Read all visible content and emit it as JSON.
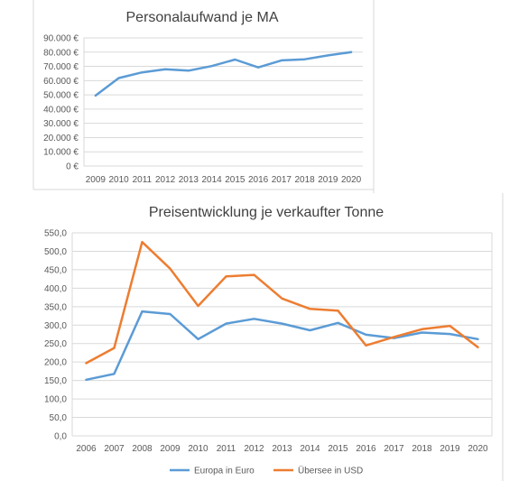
{
  "chart_data": [
    {
      "type": "line",
      "title": "Personalaufwand je MA",
      "x": [
        "2009",
        "2010",
        "2011",
        "2012",
        "2013",
        "2014",
        "2015",
        "2016",
        "2017",
        "2018",
        "2019",
        "2020"
      ],
      "yticks": [
        "0 €",
        "10.000 €",
        "20.000 €",
        "30.000 €",
        "40.000 €",
        "50.000 €",
        "60.000 €",
        "70.000 €",
        "80.000 €",
        "90.000 €"
      ],
      "ylim": [
        0,
        90000
      ],
      "grid": true,
      "series": [
        {
          "values": [
            49500,
            61800,
            65800,
            68000,
            67000,
            70200,
            74800,
            69300,
            74200,
            75000,
            77700,
            80000
          ],
          "color": "#5b9bd5"
        }
      ]
    },
    {
      "type": "line",
      "title": "Preisentwicklung je verkaufter Tonne",
      "x": [
        "2006",
        "2007",
        "2008",
        "2009",
        "2010",
        "2011",
        "2012",
        "2013",
        "2014",
        "2015",
        "2016",
        "2017",
        "2018",
        "2019",
        "2020"
      ],
      "yticks": [
        "0,0",
        "50,0",
        "100,0",
        "150,0",
        "200,0",
        "250,0",
        "300,0",
        "350,0",
        "400,0",
        "450,0",
        "500,0",
        "550,0"
      ],
      "ylim": [
        0,
        550
      ],
      "grid": true,
      "legend_position": "bottom",
      "series": [
        {
          "name": "Europa in Euro",
          "values": [
            152,
            168,
            337,
            330,
            262,
            304,
            317,
            304,
            286,
            306,
            274,
            265,
            280,
            276,
            262
          ],
          "color": "#5b9bd5"
        },
        {
          "name": "Übersee in USD",
          "values": [
            197,
            238,
            525,
            453,
            352,
            432,
            436,
            372,
            344,
            339,
            245,
            268,
            289,
            298,
            240
          ],
          "color": "#ed7d31"
        }
      ]
    }
  ]
}
